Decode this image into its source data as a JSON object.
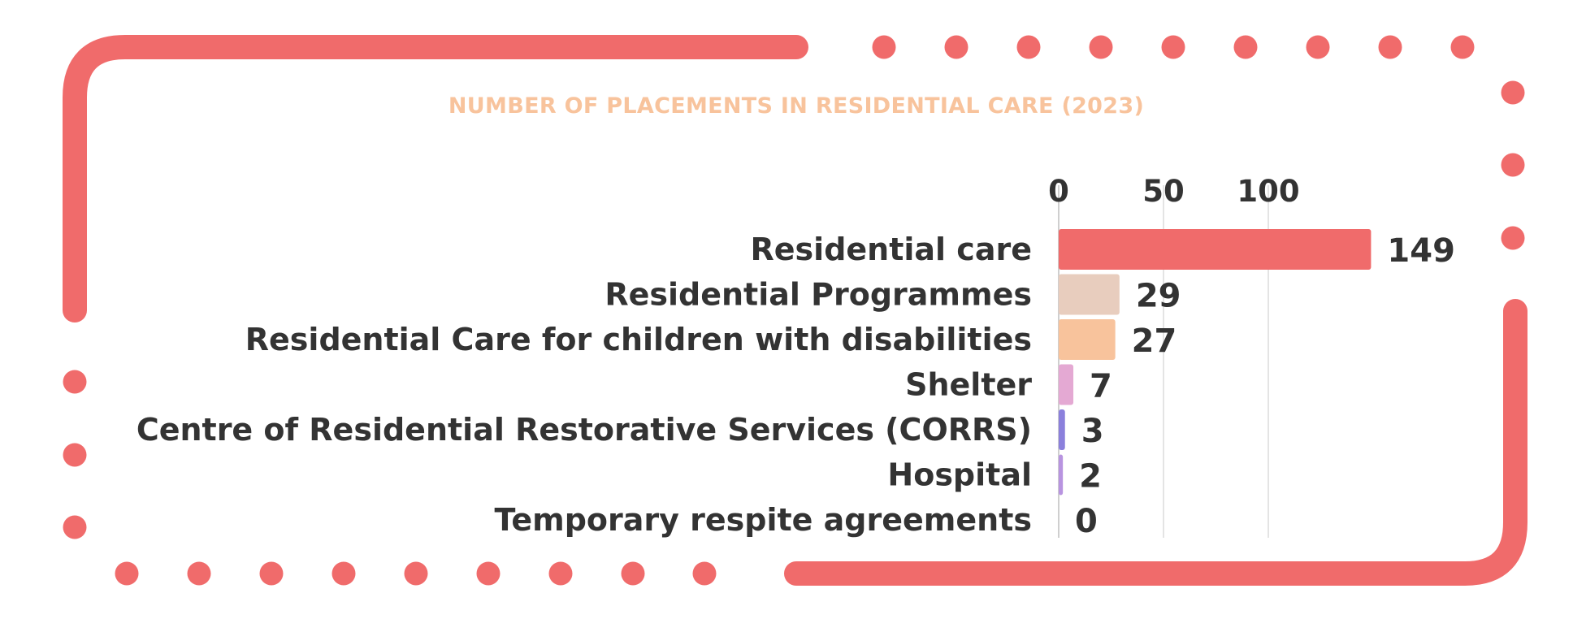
{
  "chart_data": {
    "type": "bar",
    "orientation": "horizontal",
    "title": "NUMBER OF PLACEMENTS IN RESIDENTIAL CARE (2023)",
    "categories": [
      "Residential care",
      "Residential Programmes",
      "Residential Care for children with disabilities",
      "Shelter",
      "Centre of Residential Restorative Services (CORRS)",
      "Hospital",
      "Temporary respite agreements"
    ],
    "values": [
      149,
      29,
      27,
      7,
      3,
      2,
      0
    ],
    "value_labels": [
      "149",
      "29",
      "27",
      "7",
      "3",
      "2",
      "0"
    ],
    "bar_colors": [
      "#f06b6b",
      "#e8cdbe",
      "#f8c39c",
      "#e4a9d3",
      "#8b80dc",
      "#b894e0",
      "#cccccc"
    ],
    "x_ticks": [
      0,
      50,
      100
    ],
    "x_tick_labels": [
      "0",
      "50",
      "100"
    ],
    "xlim": [
      0,
      150
    ],
    "x_axis_position": "top",
    "grid": "vertical",
    "legend": "none"
  },
  "colors": {
    "frame": "#f06b6b",
    "title": "#f8c39c",
    "text": "#333333",
    "gridline": "#e4e4e4"
  }
}
